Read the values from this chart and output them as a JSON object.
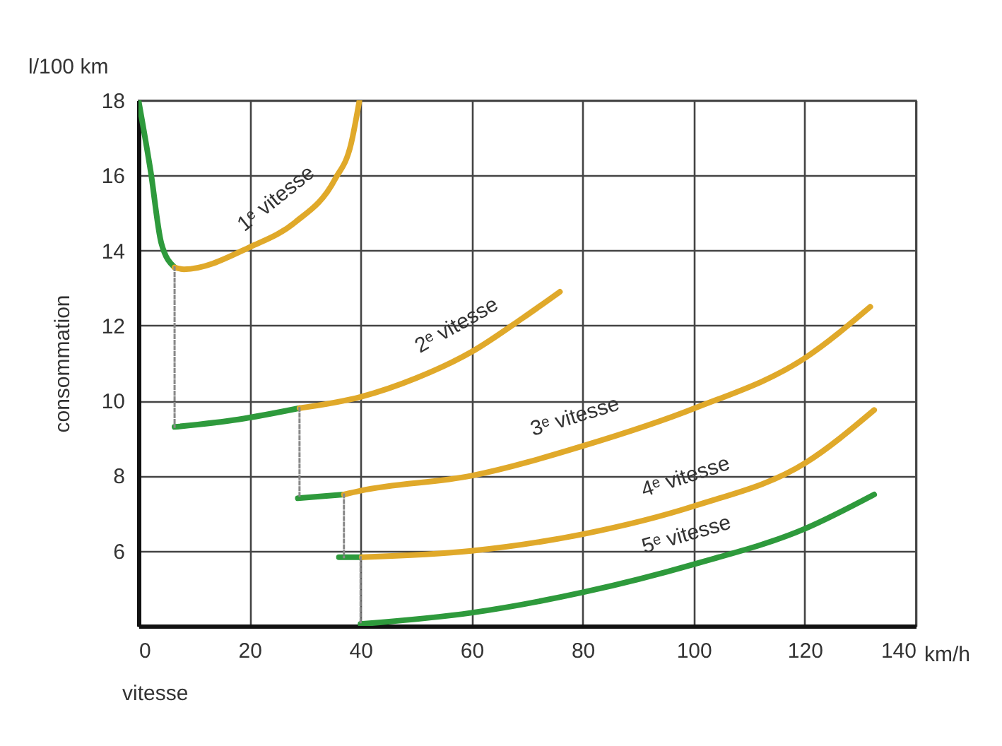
{
  "chart_data": {
    "type": "line",
    "xlabel": "vitesse",
    "ylabel": "consommation",
    "annotations": [
      "l/100 km",
      "km/h"
    ],
    "xlim": [
      0,
      140
    ],
    "xticks": [
      0,
      20,
      40,
      60,
      80,
      100,
      120,
      140
    ],
    "ylim": [
      4,
      18
    ],
    "yticks": [
      6,
      8,
      10,
      12,
      14,
      16,
      18
    ],
    "grid": true,
    "line_style": "solid",
    "series": [
      {
        "color": "#2e9a3c",
        "x": [
          0,
          2.2,
          4.1,
          6.5
        ],
        "values": [
          18,
          16.1,
          14.2,
          13.55
        ]
      },
      {
        "name": "1ᵉ vitesse",
        "color": "#e0a92a",
        "x": [
          6.5,
          8.2,
          20.2,
          28.2,
          35.4,
          38.3,
          39.8
        ],
        "values": [
          13.55,
          13.5,
          14.1,
          14.75,
          15.9,
          16.85,
          18
        ]
      },
      {
        "color": "#2e9a3c",
        "x": [
          6.5,
          18,
          29
        ],
        "values": [
          9.3,
          9.5,
          9.8
        ]
      },
      {
        "name": "2ᵉ vitesse",
        "color": "#e0a92a",
        "x": [
          29,
          40,
          50,
          60,
          69.2,
          75.9
        ],
        "values": [
          9.8,
          10.1,
          10.6,
          11.3,
          12.2,
          12.9
        ]
      },
      {
        "color": "#2e9a3c",
        "x": [
          28.7,
          37
        ],
        "values": [
          7.4,
          7.5
        ]
      },
      {
        "name": "3ᵉ vitesse",
        "color": "#e0a92a",
        "x": [
          37,
          40,
          60,
          80.2,
          100.2,
          120.2,
          131.8
        ],
        "values": [
          7.5,
          7.6,
          8.0,
          8.8,
          9.8,
          11.15,
          12.5
        ]
      },
      {
        "color": "#2e9a3c",
        "x": [
          36.1,
          40.2
        ],
        "values": [
          5.83,
          5.83
        ]
      },
      {
        "name": "4ᵉ vitesse",
        "color": "#e0a92a",
        "x": [
          40.2,
          60,
          80.2,
          100.2,
          120.2,
          132.5
        ],
        "values": [
          5.83,
          6.0,
          6.45,
          7.2,
          8.35,
          9.75
        ]
      },
      {
        "name": "5ᵉ vitesse",
        "color": "#2e9a3c",
        "x": [
          40,
          60,
          80.2,
          100.2,
          120.2,
          132.5
        ],
        "values": [
          4.05,
          4.35,
          4.9,
          5.65,
          6.6,
          7.5
        ]
      },
      {
        "color": "#888888",
        "line_style": "dotted",
        "x": [
          6.5,
          6.5
        ],
        "values": [
          13.55,
          9.3
        ]
      },
      {
        "color": "#888888",
        "line_style": "dotted",
        "x": [
          29,
          29
        ],
        "values": [
          9.8,
          7.4
        ]
      },
      {
        "color": "#888888",
        "line_style": "dotted",
        "x": [
          37,
          37
        ],
        "values": [
          7.5,
          5.83
        ]
      },
      {
        "color": "#888888",
        "line_style": "dotted",
        "x": [
          40,
          40
        ],
        "values": [
          5.83,
          4.05
        ]
      }
    ]
  }
}
